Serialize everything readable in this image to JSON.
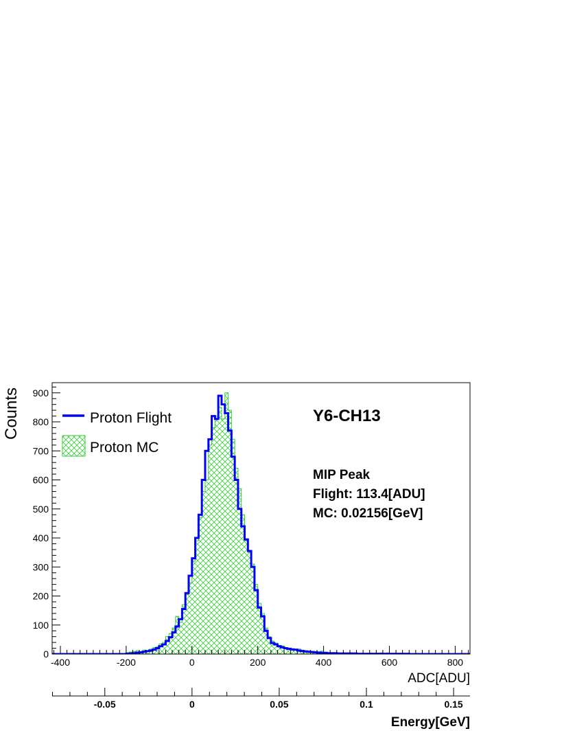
{
  "chart_data": {
    "type": "histogram",
    "title": "Y6-CH13",
    "xlabel": "ADC[ADU]",
    "ylabel": "Counts",
    "secondary_xlabel": "Energy[GeV]",
    "xlim": [
      -425,
      845
    ],
    "ylim": [
      0,
      935
    ],
    "secondary_xlim": [
      -0.0802,
      0.1594
    ],
    "x_ticks": [
      -400,
      -200,
      0,
      200,
      400,
      600,
      800
    ],
    "y_ticks": [
      0,
      100,
      200,
      300,
      400,
      500,
      600,
      700,
      800,
      900
    ],
    "secondary_ticks": [
      -0.05,
      0,
      0.05,
      0.1,
      0.15
    ],
    "secondary_tick_labels": [
      "-0.05",
      "0",
      "0.05",
      "0.1",
      "0.15"
    ],
    "bin_width": 10,
    "bin_start": -425,
    "legend": {
      "placement": "top-left",
      "entries": [
        "Proton Flight",
        "Proton MC"
      ]
    },
    "annotations": [
      "MIP Peak",
      "Flight: 113.4[ADU]",
      "MC: 0.02156[GeV]"
    ],
    "colors": {
      "flight": "#0000ff",
      "mc": "#33cc33"
    },
    "series": [
      {
        "name": "Proton Flight",
        "style": "step",
        "x": [
          -195,
          -185,
          -175,
          -165,
          -155,
          -145,
          -135,
          -125,
          -115,
          -105,
          -95,
          -85,
          -75,
          -65,
          -55,
          -45,
          -35,
          -25,
          -15,
          -5,
          5,
          15,
          25,
          35,
          45,
          55,
          65,
          75,
          85,
          95,
          105,
          115,
          125,
          135,
          145,
          155,
          165,
          175,
          185,
          195,
          205,
          215,
          225,
          235,
          245,
          255,
          265,
          275,
          285,
          295,
          305,
          315,
          325,
          335,
          345,
          355,
          365,
          375,
          385,
          395,
          405,
          415,
          425,
          435,
          445,
          455,
          465,
          475,
          485,
          495,
          505,
          515,
          525,
          535,
          545,
          555,
          565,
          575,
          585,
          595,
          605,
          615,
          625,
          635,
          645,
          655
        ],
        "values": [
          1,
          2,
          3,
          5,
          6,
          8,
          10,
          12,
          15,
          20,
          27,
          33,
          45,
          58,
          75,
          95,
          120,
          155,
          210,
          270,
          330,
          400,
          480,
          600,
          700,
          740,
          820,
          810,
          890,
          860,
          830,
          770,
          680,
          600,
          500,
          440,
          395,
          355,
          300,
          220,
          160,
          130,
          80,
          55,
          38,
          33,
          27,
          23,
          20,
          18,
          16,
          15,
          12,
          10,
          9,
          8,
          7,
          6,
          5,
          4,
          4,
          3,
          3,
          3,
          2,
          2,
          2,
          2,
          2,
          2,
          1,
          1,
          1,
          1,
          1,
          1,
          1,
          1,
          1,
          1,
          1,
          1,
          1,
          1,
          1,
          1
        ]
      },
      {
        "name": "Proton MC",
        "style": "hatched-step",
        "x": [
          -195,
          -185,
          -175,
          -165,
          -155,
          -145,
          -135,
          -125,
          -115,
          -105,
          -95,
          -85,
          -75,
          -65,
          -55,
          -45,
          -35,
          -25,
          -15,
          -5,
          5,
          15,
          25,
          35,
          45,
          55,
          65,
          75,
          85,
          95,
          105,
          115,
          125,
          135,
          145,
          155,
          165,
          175,
          185,
          195,
          205,
          215,
          225,
          235,
          245,
          255,
          265,
          275,
          285,
          295,
          305,
          315,
          325,
          335,
          345,
          355,
          365,
          375,
          385,
          395,
          405,
          415,
          425,
          435,
          445,
          455,
          465,
          475,
          485,
          495,
          505,
          515,
          525,
          535,
          545,
          555,
          565,
          575,
          585,
          595,
          605,
          615,
          625,
          635,
          645,
          655
        ],
        "values": [
          5,
          7,
          9,
          12,
          8,
          14,
          10,
          17,
          22,
          25,
          35,
          40,
          60,
          70,
          90,
          130,
          110,
          170,
          205,
          245,
          320,
          390,
          470,
          560,
          600,
          720,
          780,
          820,
          850,
          810,
          900,
          840,
          740,
          640,
          570,
          480,
          390,
          350,
          310,
          240,
          175,
          140,
          90,
          60,
          45,
          38,
          30,
          28,
          22,
          20,
          18,
          16,
          18,
          14,
          12,
          10,
          8,
          7,
          6,
          10,
          5,
          4,
          3,
          2,
          2,
          3,
          2,
          2,
          1,
          2,
          1,
          1,
          1,
          1,
          3,
          2,
          3,
          4,
          3,
          4,
          2,
          1,
          1,
          1,
          1,
          1
        ]
      }
    ]
  }
}
